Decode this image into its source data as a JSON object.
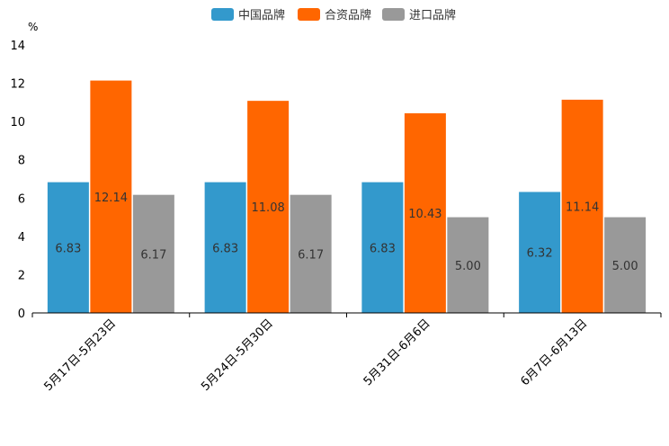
{
  "chart_data": {
    "type": "bar",
    "unit_label": "%",
    "categories": [
      "5月17日-5月23日",
      "5月24日-5月30日",
      "5月31日-6月6日",
      "6月7日-6月13日"
    ],
    "series": [
      {
        "name": "中国品牌",
        "color": "#3399cc",
        "values": [
          6.83,
          6.83,
          6.83,
          6.32
        ],
        "labels": [
          "6.83",
          "6.83",
          "6.83",
          "6.32"
        ]
      },
      {
        "name": "合资品牌",
        "color": "#ff6600",
        "values": [
          12.14,
          11.08,
          10.43,
          11.14
        ],
        "labels": [
          "12.14",
          "11.08",
          "10.43",
          "11.14"
        ]
      },
      {
        "name": "进口品牌",
        "color": "#999999",
        "values": [
          6.17,
          6.17,
          5.0,
          5.0
        ],
        "labels": [
          "6.17",
          "6.17",
          "5.00",
          "5.00"
        ]
      }
    ],
    "yticks": [
      "0",
      "2",
      "4",
      "6",
      "8",
      "10",
      "12",
      "14"
    ],
    "ylim": [
      0,
      14
    ],
    "legend_position": "top-center",
    "grid": false
  }
}
